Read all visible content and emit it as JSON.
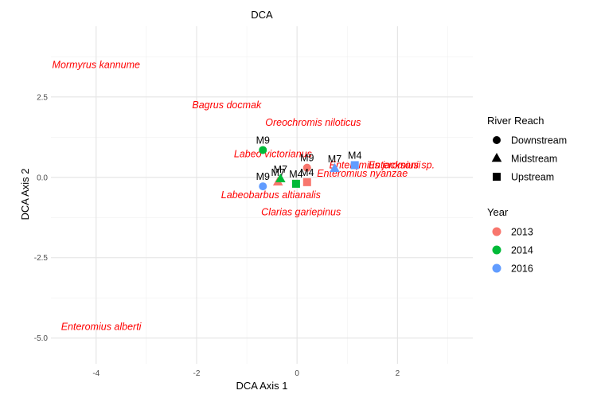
{
  "chart_data": {
    "type": "scatter",
    "title": "DCA",
    "xlabel": "DCA Axis 1",
    "ylabel": "DCA Axis 2",
    "xlim": [
      -4.9,
      3.5
    ],
    "ylim": [
      -5.8,
      4.7
    ],
    "x_ticks": [
      -4,
      -2,
      0,
      2
    ],
    "x_tick_labels": [
      "-4",
      "-2",
      "0",
      "2"
    ],
    "y_ticks": [
      -5,
      -2.5,
      0,
      2.5
    ],
    "y_tick_labels": [
      "-5.0",
      "-2.5",
      "0.0",
      "2.5"
    ],
    "grid": true,
    "legend_placement": "right",
    "shape_legend": {
      "title": "River Reach",
      "items": [
        {
          "label": "Downstream",
          "shape": "circle"
        },
        {
          "label": "Midstream",
          "shape": "triangle"
        },
        {
          "label": "Upstream",
          "shape": "square"
        }
      ]
    },
    "color_legend": {
      "title": "Year",
      "items": [
        {
          "label": "2013",
          "color": "#F8766D"
        },
        {
          "label": "2014",
          "color": "#00BA38"
        },
        {
          "label": "2016",
          "color": "#619CFF"
        }
      ]
    },
    "sites": [
      {
        "label": "M9",
        "x": 0.2,
        "y": 0.3,
        "year": "2013",
        "reach": "Downstream"
      },
      {
        "label": "M9",
        "x": -0.68,
        "y": 0.85,
        "year": "2014",
        "reach": "Downstream"
      },
      {
        "label": "M9",
        "x": -0.68,
        "y": -0.28,
        "year": "2016",
        "reach": "Downstream"
      },
      {
        "label": "M7",
        "x": -0.38,
        "y": -0.15,
        "year": "2013",
        "reach": "Midstream"
      },
      {
        "label": "M7",
        "x": -0.33,
        "y": -0.05,
        "year": "2014",
        "reach": "Midstream"
      },
      {
        "label": "M7",
        "x": 0.75,
        "y": 0.27,
        "year": "2016",
        "reach": "Midstream"
      },
      {
        "label": "M4",
        "x": 0.2,
        "y": -0.15,
        "year": "2013",
        "reach": "Upstream"
      },
      {
        "label": "M4",
        "x": -0.02,
        "y": -0.2,
        "year": "2014",
        "reach": "Upstream"
      },
      {
        "label": "M4",
        "x": 1.15,
        "y": 0.38,
        "year": "2016",
        "reach": "Upstream"
      }
    ],
    "species": [
      {
        "name": "Mormyrus kannume",
        "x": -4.0,
        "y": 3.5
      },
      {
        "name": "Bagrus docmak",
        "x": -1.4,
        "y": 2.25
      },
      {
        "name": "Oreochromis niloticus",
        "x": 0.32,
        "y": 1.7
      },
      {
        "name": "Labeo victorianus",
        "x": -0.48,
        "y": 0.72
      },
      {
        "name": "Enteromius jacksonii",
        "x": 1.55,
        "y": 0.38
      },
      {
        "name": "Enteromius sp.",
        "x": 2.08,
        "y": 0.38
      },
      {
        "name": "Enteromius nyanzae",
        "x": 1.3,
        "y": 0.12
      },
      {
        "name": "Labeobarbus altianalis",
        "x": -0.52,
        "y": -0.55
      },
      {
        "name": "Clarias gariepinus",
        "x": 0.08,
        "y": -1.08
      },
      {
        "name": "Enteromius alberti",
        "x": -3.9,
        "y": -4.65
      }
    ],
    "species_color": "#FF0000"
  }
}
